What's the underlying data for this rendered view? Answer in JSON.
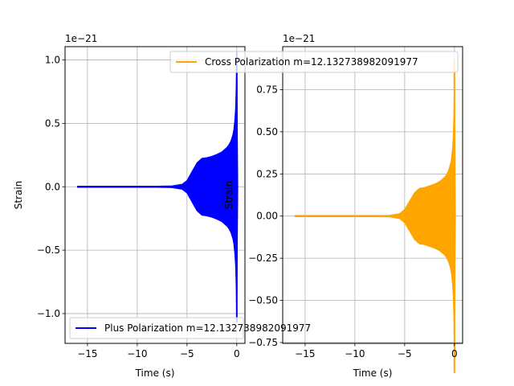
{
  "chart_data": [
    {
      "type": "line",
      "ylabel": "Strain",
      "xlabel": "Time (s)",
      "offset_label": "1e−21",
      "xlim": [
        -17.25,
        0.82
      ],
      "ylim": [
        -1.235,
        1.105
      ],
      "grid": true,
      "legend_position": "lower-left",
      "xticks": [
        -15,
        -10,
        -5,
        0
      ],
      "xtick_labels": [
        "−15",
        "−10",
        "−5",
        "0"
      ],
      "yticks": [
        -1.0,
        -0.5,
        0.0,
        0.5,
        1.0
      ],
      "ytick_labels": [
        "−1.0",
        "−0.5",
        "0.0",
        "0.5",
        "1.0"
      ],
      "series": [
        {
          "name": "Plus Polarization m=12.132738982091977",
          "color": "#0000ff",
          "x": [
            -16.0,
            -12.0,
            -8.0,
            -6.5,
            -5.5,
            -5.0,
            -4.5,
            -4.0,
            -3.5,
            -3.0,
            -2.5,
            -2.0,
            -1.5,
            -1.0,
            -0.8,
            -0.6,
            -0.4,
            -0.3,
            -0.2,
            -0.12,
            -0.06,
            -0.02,
            0.0,
            0.1
          ],
          "envelope": [
            0.005,
            0.005,
            0.005,
            0.007,
            0.02,
            0.05,
            0.12,
            0.19,
            0.225,
            0.23,
            0.24,
            0.255,
            0.275,
            0.31,
            0.33,
            0.36,
            0.41,
            0.45,
            0.53,
            0.62,
            0.8,
            1.02,
            1.07,
            0.0
          ]
        }
      ]
    },
    {
      "type": "line",
      "ylabel": "Strain",
      "xlabel": "Time (s)",
      "offset_label": "1e−21",
      "xlim": [
        -17.25,
        0.82
      ],
      "ylim": [
        -0.755,
        1.005
      ],
      "grid": true,
      "legend_position": "top",
      "xticks": [
        -15,
        -10,
        -5,
        0
      ],
      "xtick_labels": [
        "−15",
        "−10",
        "−5",
        "0"
      ],
      "yticks": [
        -0.75,
        -0.5,
        -0.25,
        0.0,
        0.25,
        0.5,
        0.75
      ],
      "ytick_labels": [
        "−0.75",
        "−0.50",
        "−0.25",
        "0.00",
        "0.25",
        "0.50",
        "0.75"
      ],
      "series": [
        {
          "name": "Cross Polarization m=12.132738982091977",
          "color": "#ffa500",
          "x": [
            -16.0,
            -12.0,
            -8.0,
            -6.5,
            -5.5,
            -5.0,
            -4.5,
            -4.0,
            -3.5,
            -3.0,
            -2.5,
            -2.0,
            -1.5,
            -1.0,
            -0.8,
            -0.6,
            -0.4,
            -0.3,
            -0.2,
            -0.12,
            -0.06,
            -0.02,
            0.0,
            0.1
          ],
          "envelope": [
            0.004,
            0.004,
            0.004,
            0.005,
            0.015,
            0.04,
            0.09,
            0.14,
            0.165,
            0.17,
            0.18,
            0.19,
            0.205,
            0.23,
            0.245,
            0.27,
            0.31,
            0.34,
            0.4,
            0.47,
            0.6,
            0.75,
            0.93,
            0.0
          ]
        }
      ]
    }
  ]
}
